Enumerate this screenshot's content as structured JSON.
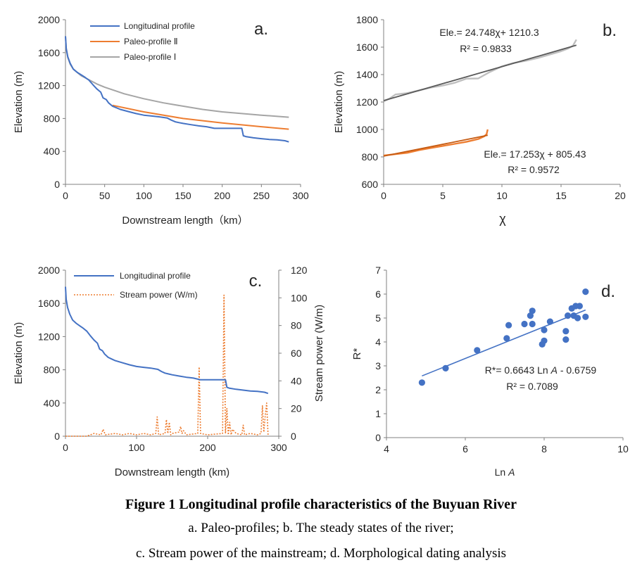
{
  "chart_data": [
    {
      "type": "line",
      "panel_label": "a.",
      "xlabel": "Downstream length（km）",
      "ylabel": "Elevation (m)",
      "xlim": [
        0,
        300
      ],
      "ylim": [
        0,
        2000
      ],
      "xticks": [
        0,
        50,
        100,
        150,
        200,
        250,
        300
      ],
      "yticks": [
        0,
        400,
        800,
        1200,
        1600,
        2000
      ],
      "grid": false,
      "legend_position": "top-left",
      "series": [
        {
          "name": "Longitudinal profile",
          "color": "#4472C4",
          "x": [
            0,
            1,
            3,
            6,
            10,
            15,
            20,
            25,
            30,
            35,
            40,
            45,
            48,
            52,
            55,
            60,
            65,
            70,
            80,
            90,
            100,
            110,
            120,
            130,
            135,
            140,
            145,
            150,
            160,
            170,
            175,
            180,
            190,
            200,
            210,
            220,
            225,
            227,
            230,
            240,
            250,
            260,
            270,
            280,
            285
          ],
          "y": [
            1800,
            1650,
            1550,
            1470,
            1400,
            1360,
            1330,
            1300,
            1265,
            1210,
            1160,
            1120,
            1050,
            1030,
            990,
            950,
            930,
            910,
            885,
            860,
            840,
            830,
            820,
            805,
            780,
            760,
            750,
            740,
            725,
            710,
            705,
            700,
            680,
            680,
            680,
            680,
            680,
            590,
            580,
            565,
            555,
            545,
            540,
            530,
            515
          ]
        },
        {
          "name": "Paleo-profile Ⅱ",
          "color": "#ED7D31",
          "x": [
            60,
            100,
            150,
            200,
            250,
            285
          ],
          "y": [
            960,
            880,
            800,
            745,
            700,
            670
          ]
        },
        {
          "name": "Paleo-profile Ⅰ",
          "color": "#A5A5A5",
          "x": [
            0,
            1,
            3,
            6,
            10,
            20,
            30,
            40,
            50,
            75,
            100,
            125,
            150,
            175,
            200,
            225,
            250,
            285
          ],
          "y": [
            1800,
            1650,
            1540,
            1460,
            1400,
            1320,
            1270,
            1220,
            1180,
            1100,
            1040,
            990,
            950,
            910,
            880,
            860,
            840,
            815
          ]
        }
      ]
    },
    {
      "type": "scatter",
      "panel_label": "b.",
      "xlabel": "χ",
      "ylabel": "Elevation (m)",
      "xlim": [
        0,
        20
      ],
      "ylim": [
        600,
        1800
      ],
      "xticks": [
        0,
        5,
        10,
        15,
        20
      ],
      "yticks": [
        600,
        800,
        1000,
        1200,
        1400,
        1600,
        1800
      ],
      "grid": false,
      "annotations": [
        {
          "text": "Ele.= 24.748χ+ 1210.3",
          "r2": "R² = 0.9833"
        },
        {
          "text": "Ele.= 17.253χ + 805.43",
          "r2": "R² = 0.9572"
        }
      ],
      "series": [
        {
          "color": "#BFBFBF",
          "x": [
            0,
            0.5,
            1,
            1.5,
            2,
            3,
            4,
            5,
            6,
            7,
            8,
            9,
            10,
            11,
            12,
            13,
            14,
            15,
            15.6,
            16,
            16.3
          ],
          "y": [
            1205,
            1225,
            1255,
            1260,
            1265,
            1285,
            1305,
            1320,
            1340,
            1370,
            1372,
            1420,
            1460,
            1485,
            1500,
            1520,
            1545,
            1570,
            1590,
            1610,
            1655
          ]
        },
        {
          "color": "#595959",
          "fit": true,
          "x": [
            0,
            16.3
          ],
          "y": [
            1210.3,
            1613.7
          ]
        },
        {
          "color": "#ED7D31",
          "x": [
            0,
            0.5,
            1,
            2,
            3,
            4,
            5,
            6,
            7,
            8,
            8.5,
            8.7,
            8.8
          ],
          "y": [
            810,
            815,
            820,
            830,
            850,
            865,
            880,
            895,
            910,
            930,
            950,
            965,
            1000
          ]
        },
        {
          "color": "#C55A11",
          "fit": true,
          "x": [
            0,
            8.8
          ],
          "y": [
            805.43,
            957.3
          ]
        }
      ]
    },
    {
      "type": "line",
      "panel_label": "c.",
      "xlabel": "Downstream length (km)",
      "ylabel": "Elevation (m)",
      "y2label": "Stream power (W/m)",
      "xlim": [
        0,
        300
      ],
      "ylim": [
        0,
        2000
      ],
      "y2lim": [
        0,
        120
      ],
      "xticks": [
        0,
        100,
        200,
        300
      ],
      "yticks": [
        0,
        400,
        800,
        1200,
        1600,
        2000
      ],
      "y2ticks": [
        0,
        20,
        40,
        60,
        80,
        100,
        120
      ],
      "grid": false,
      "legend_position": "top-left",
      "series": [
        {
          "name": "Longitudinal profile",
          "color": "#4472C4",
          "axis": "left",
          "x": [
            0,
            1,
            3,
            6,
            10,
            15,
            20,
            25,
            30,
            35,
            40,
            45,
            48,
            52,
            55,
            60,
            65,
            70,
            80,
            90,
            100,
            110,
            120,
            130,
            135,
            140,
            145,
            150,
            160,
            170,
            175,
            180,
            190,
            200,
            210,
            220,
            225,
            227,
            230,
            240,
            250,
            260,
            270,
            280,
            285
          ],
          "y": [
            1800,
            1650,
            1550,
            1470,
            1400,
            1360,
            1330,
            1300,
            1265,
            1210,
            1160,
            1120,
            1050,
            1030,
            990,
            950,
            930,
            910,
            885,
            860,
            840,
            830,
            820,
            805,
            780,
            760,
            750,
            740,
            725,
            710,
            705,
            700,
            680,
            680,
            680,
            680,
            680,
            590,
            580,
            565,
            555,
            545,
            540,
            530,
            515
          ]
        },
        {
          "name": "Stream power (W/m)",
          "color": "#ED7D31",
          "axis": "right",
          "x": [
            0,
            30,
            40,
            50,
            53,
            56,
            70,
            80,
            90,
            100,
            110,
            120,
            127,
            129,
            131,
            140,
            142,
            144,
            146,
            148,
            150,
            160,
            162,
            164,
            166,
            170,
            186,
            188,
            190,
            200,
            221,
            223,
            225,
            227,
            229,
            231,
            233,
            235,
            240,
            248,
            250,
            252,
            260,
            270,
            275,
            277,
            279,
            281,
            283,
            285
          ],
          "y": [
            0,
            0,
            2,
            1,
            5,
            1,
            2,
            1,
            2,
            1,
            2,
            1,
            2,
            14,
            1,
            2,
            12,
            2,
            10,
            1,
            2,
            3,
            7,
            2,
            4,
            1,
            2,
            50,
            2,
            1,
            2,
            102,
            2,
            20,
            1,
            10,
            1,
            5,
            2,
            1,
            8,
            1,
            2,
            1,
            2,
            22,
            3,
            15,
            24,
            1
          ]
        }
      ]
    },
    {
      "type": "scatter",
      "panel_label": "d.",
      "xlabel": "Ln A",
      "ylabel": "R*",
      "xlim": [
        4,
        10
      ],
      "ylim": [
        0,
        7
      ],
      "xticks": [
        4,
        6,
        8,
        10
      ],
      "yticks": [
        0,
        1,
        2,
        3,
        4,
        5,
        6,
        7
      ],
      "grid": false,
      "annotations": [
        {
          "text": "R*= 0.6643  Ln A - 0.6759",
          "r2": "R² = 0.7089"
        }
      ],
      "series": [
        {
          "color": "#4472C4",
          "x": [
            4.9,
            5.5,
            6.3,
            7.05,
            7.1,
            7.5,
            7.65,
            7.7,
            7.7,
            7.95,
            8.0,
            8.0,
            8.15,
            8.55,
            8.55,
            8.6,
            8.7,
            8.75,
            8.8,
            8.85,
            8.9,
            9.05,
            9.05
          ],
          "y": [
            2.3,
            2.9,
            3.65,
            4.15,
            4.7,
            4.75,
            5.1,
            5.3,
            4.75,
            3.9,
            4.05,
            4.5,
            4.85,
            4.1,
            4.45,
            5.1,
            5.4,
            5.1,
            5.5,
            5.0,
            5.5,
            6.1,
            5.05
          ]
        },
        {
          "color": "#4472C4",
          "fit": true,
          "x": [
            4.9,
            9.05
          ],
          "y": [
            2.579,
            5.336
          ]
        }
      ]
    }
  ],
  "caption": {
    "title": "Figure 1    Longitudinal profile characteristics of the Buyuan River",
    "line1": "a. Paleo-profiles; b. The steady states of the river;",
    "line2": "c. Stream power of the mainstream; d. Morphological dating analysis"
  }
}
